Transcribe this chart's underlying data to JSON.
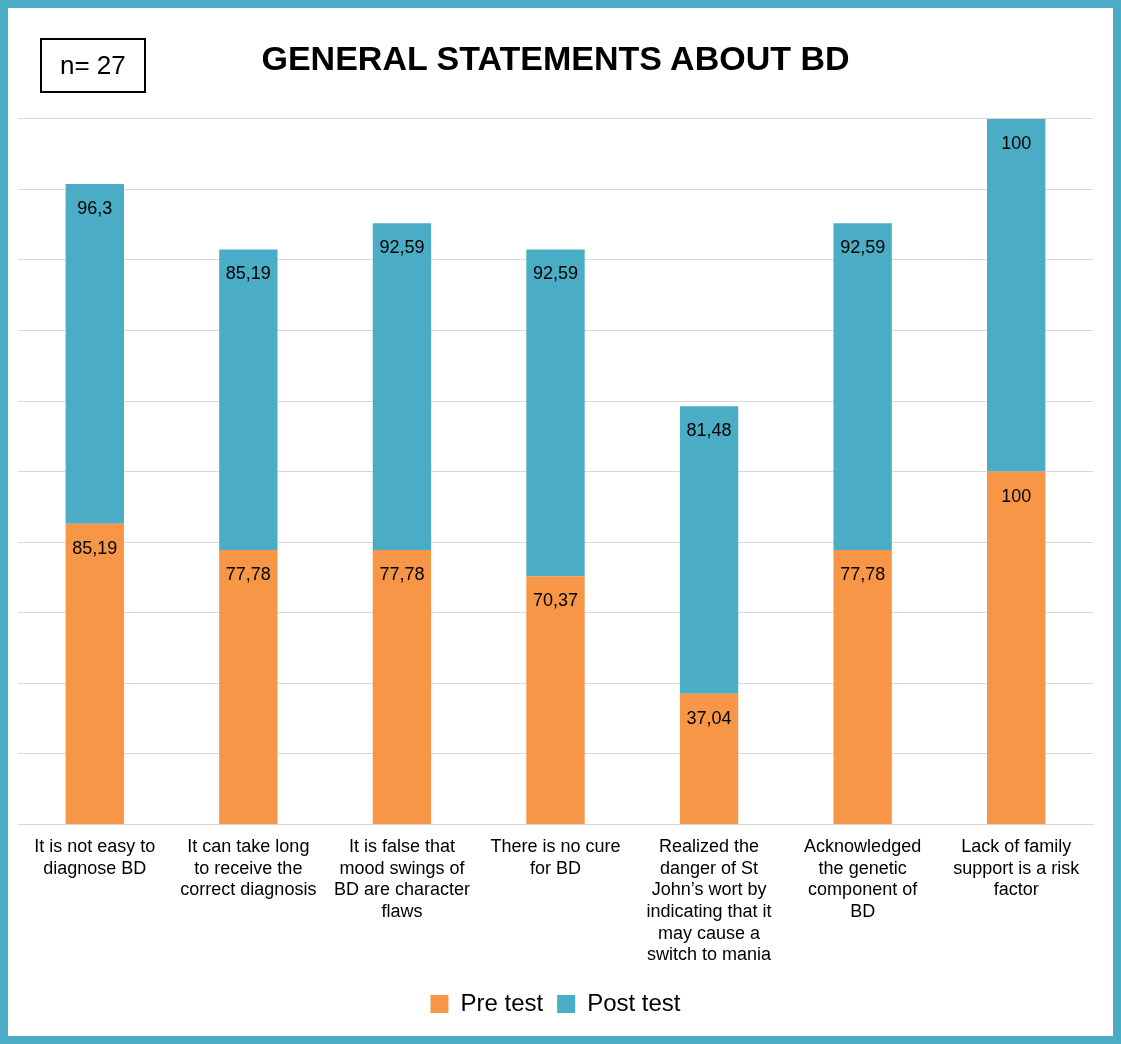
{
  "chart_data": {
    "type": "bar",
    "title": "GENERAL STATEMENTS ABOUT BD",
    "annotations": [
      "n= 27"
    ],
    "categories": [
      "It is not easy to diagnose BD",
      "It can take long to receive the correct diagnosis",
      "It is false that mood swings of BD are character flaws",
      "There is no cure for BD",
      "Realized the danger of St John’s wort by indicating that it may cause a switch to mania",
      "Acknowledged the genetic component of BD",
      "Lack of family support is a risk factor"
    ],
    "series": [
      {
        "name": "Pre test",
        "color": "#f79646",
        "values": [
          85.19,
          77.78,
          77.78,
          70.37,
          37.04,
          77.78,
          100
        ],
        "value_labels": [
          "85,19",
          "77,78",
          "77,78",
          "70,37",
          "37,04",
          "77,78",
          "100"
        ]
      },
      {
        "name": "Post test",
        "color": "#4bacc6",
        "values": [
          96.3,
          85.19,
          92.59,
          92.59,
          81.48,
          92.59,
          100
        ],
        "value_labels": [
          "96,3",
          "85,19",
          "92,59",
          "92,59",
          "81,48",
          "92,59",
          "100"
        ]
      }
    ],
    "stacked": true,
    "ylim": [
      0,
      200
    ],
    "yticks": [
      {
        "value": 0,
        "label": null
      },
      {
        "value": 20,
        "label": null
      },
      {
        "value": 40,
        "label": null
      },
      {
        "value": 60,
        "label": null
      },
      {
        "value": 80,
        "label": null
      },
      {
        "value": 100,
        "label": null
      },
      {
        "value": 120,
        "label": null
      },
      {
        "value": 140,
        "label": null
      },
      {
        "value": 160,
        "label": null
      },
      {
        "value": 180,
        "label": null
      },
      {
        "value": 200,
        "label": null
      }
    ],
    "tick_labels": "x",
    "grid": "y",
    "legend": "bottom"
  }
}
